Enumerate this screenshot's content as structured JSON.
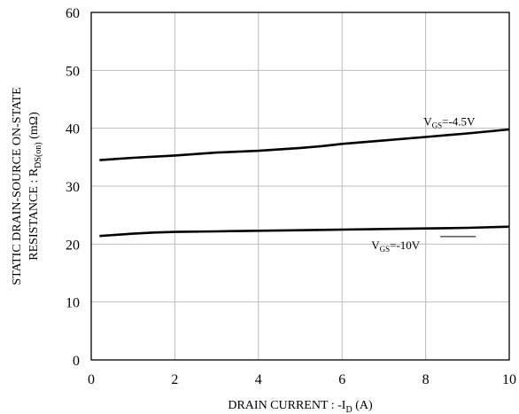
{
  "chart_data": {
    "type": "line",
    "xlabel": {
      "prefix": "DRAIN CURRENT : -I",
      "sub": "D",
      "suffix": " (A)"
    },
    "ylabel": {
      "line1": "STATIC DRAIN-SOURCE ON-STATE",
      "line2_prefix": "RESISTANCE : R",
      "line2_sub": "DS(on)",
      "line2_suffix": " (mΩ)"
    },
    "xlim": [
      0,
      10
    ],
    "ylim": [
      0,
      60
    ],
    "xticks": [
      "0",
      "2",
      "4",
      "6",
      "8",
      "10"
    ],
    "yticks": [
      "0",
      "10",
      "20",
      "30",
      "40",
      "50",
      "60"
    ],
    "grid": true,
    "series": [
      {
        "label_prefix": "V",
        "label_sub": "GS",
        "label_suffix": "=-4.5V",
        "x": [
          0.2,
          1,
          2,
          3,
          4,
          5,
          5.5,
          6,
          7,
          8,
          9,
          10
        ],
        "y": [
          34.5,
          34.9,
          35.3,
          35.8,
          36.1,
          36.6,
          36.9,
          37.3,
          37.9,
          38.5,
          39.1,
          39.8
        ]
      },
      {
        "label_prefix": "V",
        "label_sub": "GS",
        "label_suffix": "=-10V",
        "x": [
          0.2,
          1,
          1.5,
          2,
          3,
          4,
          5,
          6,
          7,
          8,
          9,
          10
        ],
        "y": [
          21.4,
          21.8,
          22.0,
          22.1,
          22.2,
          22.3,
          22.4,
          22.5,
          22.6,
          22.7,
          22.8,
          23.0
        ]
      }
    ]
  }
}
